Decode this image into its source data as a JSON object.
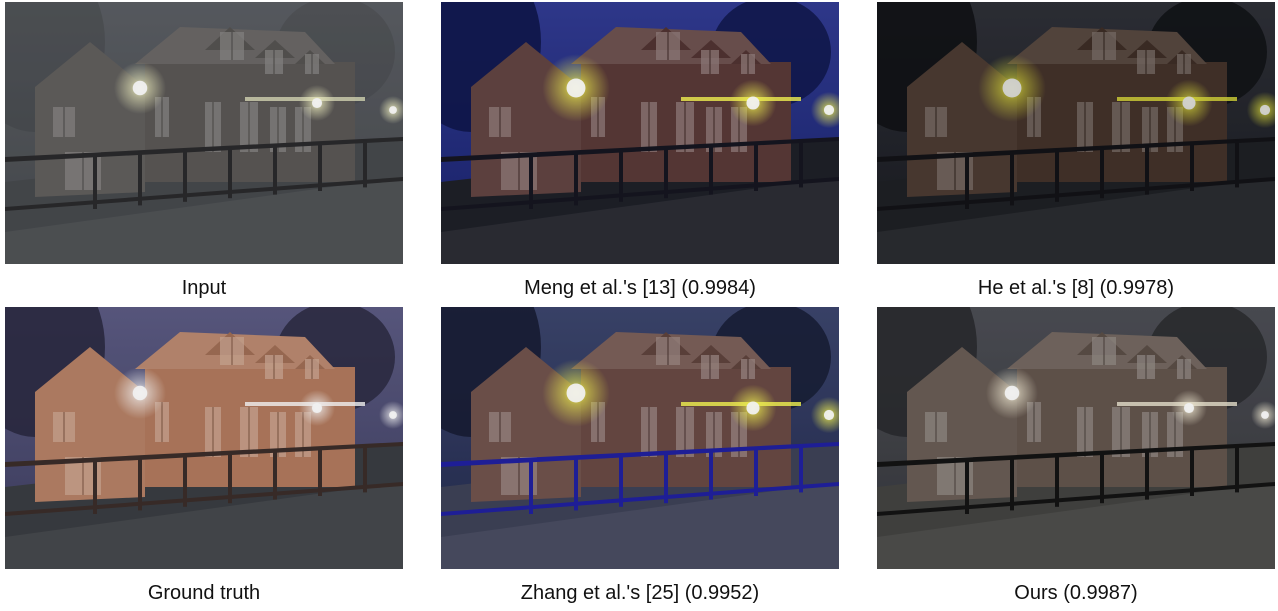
{
  "figure": {
    "panels": [
      {
        "caption": "Input",
        "style": "hazy",
        "colors": {
          "sky": "#3a3d44",
          "house": "#4a4540",
          "ground": "#2e3134",
          "fence": "#2a2a2c",
          "glow": "#ffffcc"
        }
      },
      {
        "caption": "Meng et al.'s [13] (0.9984)",
        "style": "blue-dehazed",
        "colors": {
          "sky": "#1f2a88",
          "house": "#5a3a38",
          "ground": "#1e2028",
          "fence": "#161620",
          "glow": "#ffff55"
        }
      },
      {
        "caption": "He et al.'s [8] (0.9978)",
        "style": "dark-dehazed",
        "colors": {
          "sky": "#23262e",
          "house": "#4e3a30",
          "ground": "#23252a",
          "fence": "#15151a",
          "glow": "#ffff44"
        }
      },
      {
        "caption": "Ground truth",
        "style": "clear",
        "colors": {
          "sky": "#4e4d78",
          "house": "#b27a5e",
          "ground": "#3a3d42",
          "fence": "#3b2d2a",
          "glow": "#ffffff"
        }
      },
      {
        "caption": "Zhang et al.'s [25] (0.9952)",
        "style": "enhanced",
        "colors": {
          "sky": "#2b3560",
          "house": "#6a4a44",
          "ground": "#3e4258",
          "fence": "#2020a0",
          "glow": "#ffff55"
        }
      },
      {
        "caption": "Ours (0.9987)",
        "style": "ours",
        "colors": {
          "sky": "#34363c",
          "house": "#5e4e44",
          "ground": "#3a3a36",
          "fence": "#141414",
          "glow": "#fff8e0"
        }
      }
    ]
  }
}
